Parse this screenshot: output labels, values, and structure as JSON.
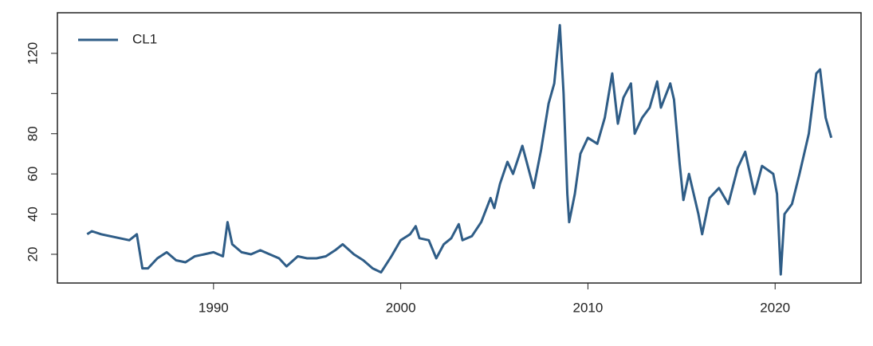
{
  "chart_data": {
    "type": "line",
    "x": [
      1983.25,
      1983.5,
      1984,
      1985,
      1985.5,
      1985.9,
      1986.2,
      1986.5,
      1987,
      1987.5,
      1988,
      1988.5,
      1989,
      1989.5,
      1990,
      1990.5,
      1990.75,
      1991,
      1991.5,
      1992,
      1992.5,
      1993,
      1993.5,
      1993.9,
      1994.5,
      1995,
      1995.5,
      1996,
      1996.5,
      1996.9,
      1997.5,
      1998,
      1998.5,
      1998.95,
      1999.5,
      2000,
      2000.5,
      2000.8,
      2001,
      2001.5,
      2001.9,
      2002.3,
      2002.7,
      2003.1,
      2003.3,
      2003.8,
      2004.3,
      2004.8,
      2005,
      2005.3,
      2005.7,
      2006,
      2006.5,
      2006.9,
      2007.1,
      2007.5,
      2007.9,
      2008.2,
      2008.5,
      2008.7,
      2008.9,
      2009,
      2009.3,
      2009.6,
      2010,
      2010.5,
      2010.9,
      2011.3,
      2011.6,
      2011.9,
      2012.3,
      2012.5,
      2012.9,
      2013.3,
      2013.7,
      2013.9,
      2014.4,
      2014.6,
      2014.9,
      2015.1,
      2015.4,
      2015.9,
      2016.1,
      2016.5,
      2017,
      2017.5,
      2018,
      2018.4,
      2018.9,
      2019.3,
      2019.9,
      2020.1,
      2020.3,
      2020.5,
      2020.9,
      2021.3,
      2021.8,
      2022.2,
      2022.4,
      2022.7,
      2023.0
    ],
    "series": [
      {
        "name": "CL1",
        "color": "#2f5d87",
        "values": [
          30,
          31.5,
          30,
          28,
          27,
          30,
          13,
          13,
          18,
          21,
          17,
          16,
          19,
          20,
          21,
          19,
          36,
          25,
          21,
          20,
          22,
          20,
          18,
          14,
          19,
          18,
          18,
          19,
          22,
          25,
          20,
          17,
          13,
          11,
          19,
          27,
          30,
          34,
          28,
          27,
          18,
          25,
          28,
          35,
          27,
          29,
          36,
          48,
          43,
          55,
          66,
          60,
          74,
          60,
          53,
          72,
          95,
          105,
          134,
          100,
          50,
          36,
          50,
          70,
          78,
          75,
          88,
          110,
          85,
          98,
          105,
          80,
          88,
          93,
          106,
          93,
          105,
          97,
          65,
          47,
          60,
          40,
          30,
          48,
          53,
          45,
          63,
          71,
          50,
          64,
          60,
          50,
          10,
          40,
          45,
          60,
          80,
          110,
          112,
          88,
          78
        ]
      }
    ],
    "xlim": [
      1981.66,
      2024.59
    ],
    "xticks": [
      1990,
      2000,
      2010,
      2020
    ],
    "ylim": [
      5.7,
      140.2
    ],
    "yticks": [
      20,
      40,
      60,
      80,
      {
        "value": 100,
        "label": null
      },
      120
    ],
    "legend": "top-left"
  }
}
